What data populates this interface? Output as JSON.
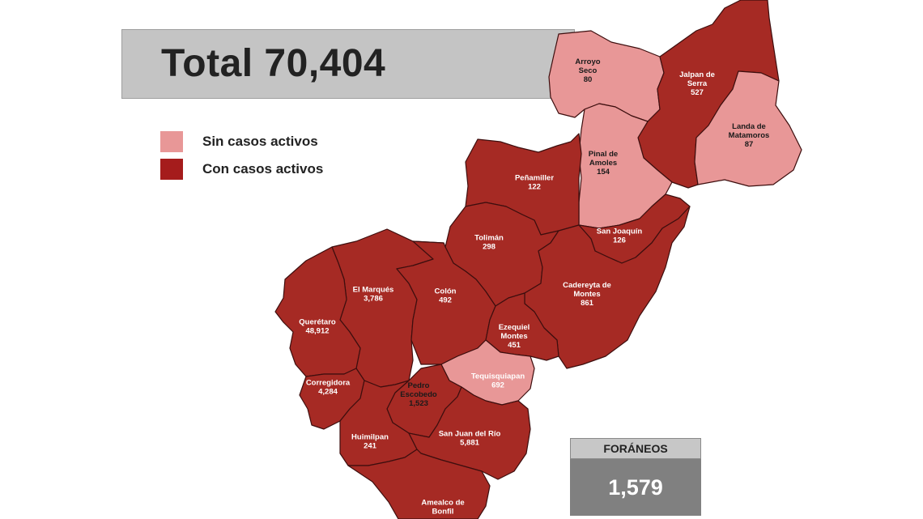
{
  "total_label": "Total 70,404",
  "legend": [
    {
      "label": "Sin casos activos",
      "color": "#e89797"
    },
    {
      "label": "Con casos activos",
      "color": "#a51c1c"
    }
  ],
  "colors": {
    "with_cases": "#a62a24",
    "without_cases": "#e89797",
    "border": "#3d0e0e"
  },
  "municipalities": [
    {
      "name": "Arroyo Seco",
      "lines": [
        "Arroyo",
        "Seco"
      ],
      "value": "80",
      "status": "sin"
    },
    {
      "name": "Jalpan de Serra",
      "lines": [
        "Jalpan de",
        "Serra"
      ],
      "value": "527",
      "status": "con"
    },
    {
      "name": "Landa de Matamoros",
      "lines": [
        "Landa de",
        "Matamoros"
      ],
      "value": "87",
      "status": "sin"
    },
    {
      "name": "Pinal de Amoles",
      "lines": [
        "Pinal de",
        "Amoles"
      ],
      "value": "154",
      "status": "sin"
    },
    {
      "name": "Peñamiller",
      "lines": [
        "Peñamiller"
      ],
      "value": "122",
      "status": "con"
    },
    {
      "name": "San Joaquín",
      "lines": [
        "San Joaquín"
      ],
      "value": "126",
      "status": "con"
    },
    {
      "name": "Tolimán",
      "lines": [
        "Tolimán"
      ],
      "value": "298",
      "status": "con"
    },
    {
      "name": "Cadereyta de Montes",
      "lines": [
        "Cadereyta de",
        "Montes"
      ],
      "value": "861",
      "status": "con"
    },
    {
      "name": "El Marqués",
      "lines": [
        "El  Marqués"
      ],
      "value": "3,786",
      "status": "con"
    },
    {
      "name": "Colón",
      "lines": [
        "Colón"
      ],
      "value": "492",
      "status": "con"
    },
    {
      "name": "Querétaro",
      "lines": [
        "Querétaro"
      ],
      "value": "48,912",
      "status": "con"
    },
    {
      "name": "Ezequiel Montes",
      "lines": [
        "Ezequiel",
        "Montes"
      ],
      "value": "451",
      "status": "con"
    },
    {
      "name": "Corregidora",
      "lines": [
        "Corregidora"
      ],
      "value": "4,284",
      "status": "con"
    },
    {
      "name": "Pedro Escobedo",
      "lines": [
        "Pedro",
        "Escobedo"
      ],
      "value": "1,523",
      "status": "sin"
    },
    {
      "name": "Tequisquiapan",
      "lines": [
        "Tequisquiapan"
      ],
      "value": "692",
      "status": "con"
    },
    {
      "name": "Huimilpan",
      "lines": [
        "Huimilpan"
      ],
      "value": "241",
      "status": "con"
    },
    {
      "name": "San Juan del Río",
      "lines": [
        "San Juan del Río"
      ],
      "value": "5,881",
      "status": "con"
    },
    {
      "name": "Amealco de Bonfil",
      "lines": [
        "Amealco de",
        "Bonfil"
      ],
      "value": "",
      "status": "con"
    }
  ],
  "foraneos": {
    "label": "FORÁNEOS",
    "value": "1,579"
  }
}
